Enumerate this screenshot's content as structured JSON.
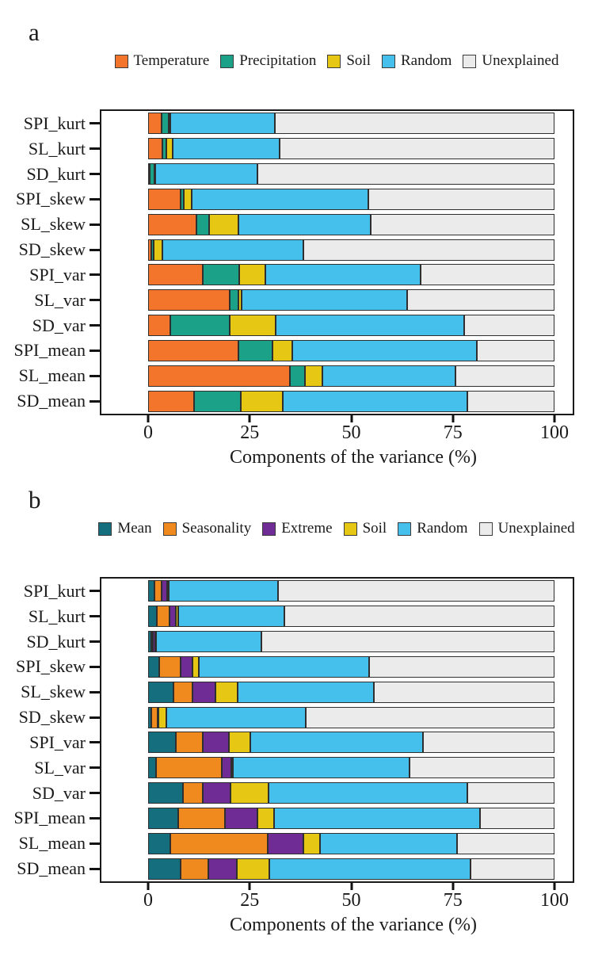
{
  "figure": {
    "background": "#ffffff",
    "text_color": "#1a1a1a",
    "panel_border_color": "#1a1a1a",
    "unexplained_fill": "#EBEBEB"
  },
  "chart_data": [
    {
      "type": "bar",
      "orientation": "horizontal-stacked",
      "panel_label": "a",
      "xlabel": "Components of the variance (%)",
      "xlim": [
        0,
        100
      ],
      "xticks": [
        0,
        25,
        50,
        75,
        100
      ],
      "grid": false,
      "legend_position": "top",
      "categories": [
        "SPI_kurt",
        "SL_kurt",
        "SD_kurt",
        "SPI_skew",
        "SL_skew",
        "SD_skew",
        "SPI_var",
        "SL_var",
        "SD_var",
        "SPI_mean",
        "SL_mean",
        "SD_mean"
      ],
      "series": [
        {
          "name": "Temperature",
          "color": "#F2752B",
          "values": [
            3.4,
            3.6,
            0.4,
            8.0,
            11.9,
            0.8,
            13.4,
            20.1,
            5.5,
            22.3,
            34.9,
            11.4
          ]
        },
        {
          "name": "Precipitation",
          "color": "#1BA187",
          "values": [
            1.6,
            0.9,
            1.2,
            0.7,
            3.2,
            0.5,
            9.1,
            2.2,
            14.6,
            8.4,
            3.7,
            11.5
          ]
        },
        {
          "name": "Soil",
          "color": "#E6C713",
          "values": [
            0.4,
            1.6,
            0.2,
            2.0,
            7.1,
            2.2,
            6.3,
            0.7,
            11.3,
            4.8,
            4.3,
            10.2
          ]
        },
        {
          "name": "Random",
          "color": "#45BFEB",
          "values": [
            25.8,
            26.2,
            25.2,
            43.5,
            32.5,
            34.8,
            38.3,
            40.8,
            46.4,
            45.5,
            32.7,
            45.5
          ]
        },
        {
          "name": "Unexplained",
          "color": "#EBEBEB",
          "values": [
            68.8,
            67.7,
            73.0,
            45.8,
            45.3,
            61.7,
            32.9,
            36.2,
            22.2,
            19.0,
            24.4,
            21.4
          ]
        }
      ]
    },
    {
      "type": "bar",
      "orientation": "horizontal-stacked",
      "panel_label": "b",
      "xlabel": "Components of the variance (%)",
      "xlim": [
        0,
        100
      ],
      "xticks": [
        0,
        25,
        50,
        75,
        100
      ],
      "grid": false,
      "legend_position": "top",
      "categories": [
        "SPI_kurt",
        "SL_kurt",
        "SD_kurt",
        "SPI_skew",
        "SL_skew",
        "SD_skew",
        "SPI_var",
        "SL_var",
        "SD_var",
        "SPI_mean",
        "SL_mean",
        "SD_mean"
      ],
      "series": [
        {
          "name": "Mean",
          "color": "#146E7E",
          "values": [
            1.5,
            2.1,
            0.7,
            2.7,
            6.2,
            0.8,
            6.9,
            1.9,
            8.5,
            7.5,
            5.4,
            8.0
          ]
        },
        {
          "name": "Seasonality",
          "color": "#F08A1E",
          "values": [
            1.8,
            3.1,
            0.5,
            5.3,
            4.7,
            1.6,
            6.6,
            16.2,
            5.0,
            11.4,
            24.0,
            6.8
          ]
        },
        {
          "name": "Extreme",
          "color": "#6E2C94",
          "values": [
            1.4,
            1.6,
            0.6,
            2.9,
            5.6,
            0.2,
            6.4,
            2.3,
            6.8,
            8.1,
            8.8,
            7.0
          ]
        },
        {
          "name": "Soil",
          "color": "#E6C713",
          "values": [
            0.4,
            0.7,
            0.2,
            1.5,
            5.6,
            1.8,
            5.3,
            0.5,
            9.4,
            4.0,
            4.1,
            8.1
          ]
        },
        {
          "name": "Random",
          "color": "#45BFEB",
          "values": [
            26.9,
            26.1,
            25.8,
            41.9,
            33.5,
            34.4,
            42.5,
            43.5,
            48.9,
            50.7,
            33.7,
            49.4
          ]
        },
        {
          "name": "Unexplained",
          "color": "#EBEBEB",
          "values": [
            68.0,
            66.4,
            72.2,
            45.7,
            44.4,
            61.2,
            32.3,
            35.6,
            21.4,
            18.3,
            24.0,
            20.7
          ]
        }
      ]
    }
  ]
}
